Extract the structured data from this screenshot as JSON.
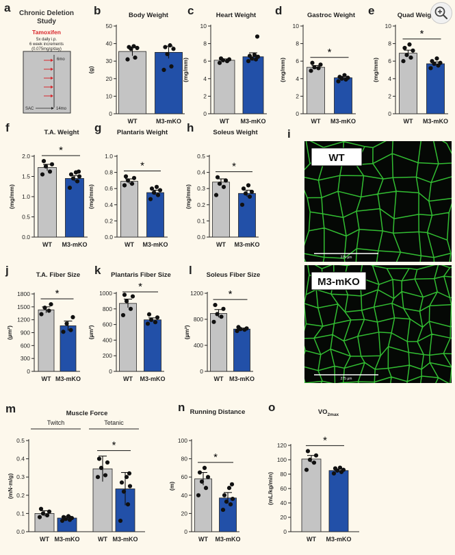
{
  "ui": {
    "zoom_icon": "zoom-in-icon"
  },
  "colors": {
    "wt": "#c4c4c4",
    "ko": "#2250a8",
    "sig": "#000000",
    "background": "#fdf8ec",
    "fiber": "#37d337"
  },
  "schematic": {
    "letter": "a",
    "title_lines": [
      "Chronic Deletion",
      "Study"
    ],
    "drug": "Tamoxifen",
    "detail_lines": [
      "5x daily i.p.",
      "6 week increments",
      "(0.075mg/g/day)"
    ],
    "start_label": "6mo",
    "end_label": "SAC",
    "end_age": "14mo",
    "doses": 5
  },
  "micrographs": [
    {
      "letter": "i",
      "label": "WT",
      "scale_text": "275 µm"
    },
    {
      "label": "M3-mKO",
      "scale_text": "275 µm"
    }
  ],
  "chart_data": [
    {
      "id": "b",
      "letter": "b",
      "type": "bar",
      "title": "Body Weight",
      "ylabel": "(g)",
      "ylim": [
        0,
        50
      ],
      "yticks": [
        0,
        10,
        20,
        30,
        40,
        50
      ],
      "categories": [
        "WT",
        "M3-mKO"
      ],
      "values": [
        35.5,
        35.0
      ],
      "errors": [
        2.5,
        3.5
      ],
      "points": [
        [
          31,
          32,
          37,
          37.5,
          38,
          38.5
        ],
        [
          25,
          27,
          34,
          37,
          38,
          39
        ]
      ],
      "significance": null
    },
    {
      "id": "c",
      "letter": "c",
      "type": "bar",
      "title": "Heart Weight",
      "ylabel": "(mg/mm)",
      "ylim": [
        0,
        10
      ],
      "yticks": [
        0,
        2,
        4,
        6,
        8,
        10
      ],
      "categories": [
        "WT",
        "M3-mKO"
      ],
      "values": [
        6.1,
        6.5
      ],
      "errors": [
        0.15,
        0.45
      ],
      "points": [
        [
          5.8,
          6.0,
          6.1,
          6.2,
          6.3
        ],
        [
          6.0,
          6.2,
          6.3,
          6.5,
          6.6,
          6.7,
          8.8
        ]
      ],
      "significance": null
    },
    {
      "id": "d",
      "letter": "d",
      "type": "bar",
      "title": "Gastroc Weight",
      "ylabel": "(mg/mm)",
      "ylim": [
        0,
        10
      ],
      "yticks": [
        0,
        2,
        4,
        6,
        8,
        10
      ],
      "categories": [
        "WT",
        "M3-mKO"
      ],
      "values": [
        5.3,
        4.1
      ],
      "errors": [
        0.2,
        0.15
      ],
      "points": [
        [
          4.9,
          5.2,
          5.3,
          5.6,
          5.8
        ],
        [
          3.7,
          3.9,
          4.0,
          4.1,
          4.2,
          4.4
        ]
      ],
      "significance": "*"
    },
    {
      "id": "e",
      "letter": "e",
      "type": "bar",
      "title": "Quad Weight",
      "ylabel": "(mg/mm)",
      "ylim": [
        0,
        10
      ],
      "yticks": [
        0,
        2,
        4,
        6,
        8,
        10
      ],
      "categories": [
        "WT",
        "M3-mKO"
      ],
      "values": [
        6.9,
        5.7
      ],
      "errors": [
        0.35,
        0.2
      ],
      "points": [
        [
          6.0,
          6.4,
          6.7,
          7.2,
          7.5,
          7.9
        ],
        [
          5.2,
          5.5,
          5.7,
          5.8,
          6.0,
          6.3
        ]
      ],
      "significance": "*"
    },
    {
      "id": "f",
      "letter": "f",
      "type": "bar",
      "title": "T.A. Weight",
      "ylabel": "(mg/mm)",
      "ylim": [
        0,
        2.0
      ],
      "yticks": [
        0.0,
        0.5,
        1.0,
        1.5,
        2.0
      ],
      "categories": [
        "WT",
        "M3-mKO"
      ],
      "values": [
        1.72,
        1.45
      ],
      "errors": [
        0.08,
        0.07
      ],
      "points": [
        [
          1.55,
          1.62,
          1.75,
          1.8,
          1.88
        ],
        [
          1.22,
          1.38,
          1.45,
          1.5,
          1.55,
          1.6,
          1.62
        ]
      ],
      "significance": "*"
    },
    {
      "id": "g",
      "letter": "g",
      "type": "bar",
      "title": "Plantaris Weight",
      "ylabel": "(mg/mm)",
      "ylim": [
        0,
        1.0
      ],
      "yticks": [
        0.0,
        0.2,
        0.4,
        0.6,
        0.8,
        1.0
      ],
      "categories": [
        "WT",
        "M3-mKO"
      ],
      "values": [
        0.69,
        0.55
      ],
      "errors": [
        0.03,
        0.03
      ],
      "points": [
        [
          0.64,
          0.66,
          0.7,
          0.73,
          0.75
        ],
        [
          0.47,
          0.52,
          0.55,
          0.58,
          0.6,
          0.62
        ]
      ],
      "significance": "*"
    },
    {
      "id": "h",
      "letter": "h",
      "type": "bar",
      "title": "Soleus Weight",
      "ylabel": "(mg/mm)",
      "ylim": [
        0,
        0.5
      ],
      "yticks": [
        0.0,
        0.1,
        0.2,
        0.3,
        0.4,
        0.5
      ],
      "categories": [
        "WT",
        "M3-mKO"
      ],
      "values": [
        0.34,
        0.27
      ],
      "errors": [
        0.02,
        0.02
      ],
      "points": [
        [
          0.26,
          0.31,
          0.33,
          0.35,
          0.37
        ],
        [
          0.2,
          0.25,
          0.27,
          0.28,
          0.3,
          0.32
        ]
      ],
      "significance": "*"
    },
    {
      "id": "j",
      "letter": "j",
      "type": "bar",
      "title": "T.A. Fiber Size",
      "ylabel": "(µm²)",
      "ylim": [
        0,
        1800
      ],
      "yticks": [
        0,
        300,
        600,
        900,
        1200,
        1500,
        1800
      ],
      "categories": [
        "WT",
        "M3-mKO"
      ],
      "values": [
        1430,
        1060
      ],
      "errors": [
        70,
        110
      ],
      "points": [
        [
          1330,
          1410,
          1480,
          1560
        ],
        [
          920,
          960,
          1110,
          1260
        ]
      ],
      "significance": "*"
    },
    {
      "id": "k",
      "letter": "k",
      "type": "bar",
      "title": "Plantaris Fiber Size",
      "ylabel": "(µm²)",
      "ylim": [
        0,
        1000
      ],
      "yticks": [
        0,
        200,
        400,
        600,
        800,
        1000
      ],
      "categories": [
        "WT",
        "M3-mKO"
      ],
      "values": [
        870,
        660
      ],
      "errors": [
        55,
        25
      ],
      "points": [
        [
          720,
          800,
          900,
          960,
          980
        ],
        [
          610,
          630,
          660,
          690,
          730
        ]
      ],
      "significance": "*"
    },
    {
      "id": "l",
      "letter": "l",
      "type": "bar",
      "title": "Soleus Fiber Size",
      "ylabel": "(µm²)",
      "ylim": [
        0,
        1200
      ],
      "yticks": [
        0,
        400,
        800,
        1200
      ],
      "categories": [
        "WT",
        "M3-mKO"
      ],
      "values": [
        890,
        650
      ],
      "errors": [
        60,
        15
      ],
      "points": [
        [
          760,
          840,
          880,
          960,
          1020
        ],
        [
          620,
          640,
          650,
          660,
          680
        ]
      ],
      "significance": "*"
    },
    {
      "id": "m",
      "letter": "m",
      "type": "bar",
      "title": "Muscle Force",
      "ylabel": "(mN·m/g)",
      "ylim": [
        0,
        0.5
      ],
      "yticks": [
        0.0,
        0.1,
        0.2,
        0.3,
        0.4,
        0.5
      ],
      "groups": [
        "Twitch",
        "Tetanic"
      ],
      "categories": [
        "WT",
        "M3-mKO",
        "WT",
        "M3-mKO"
      ],
      "values": [
        0.1,
        0.075,
        0.345,
        0.235
      ],
      "errors": [
        0.015,
        0.01,
        0.07,
        0.09
      ],
      "points": [
        [
          0.08,
          0.09,
          0.1,
          0.11,
          0.125
        ],
        [
          0.06,
          0.065,
          0.07,
          0.075,
          0.08,
          0.085
        ],
        [
          0.3,
          0.31,
          0.35,
          0.38,
          0.4
        ],
        [
          0.06,
          0.15,
          0.22,
          0.25,
          0.27,
          0.3,
          0.32
        ]
      ],
      "significance": "*",
      "significance_between": [
        2,
        3
      ]
    },
    {
      "id": "n",
      "letter": "n",
      "type": "bar",
      "title": "Running Distance",
      "ylabel": "(m)",
      "ylim": [
        0,
        100
      ],
      "yticks": [
        0,
        20,
        40,
        60,
        80,
        100
      ],
      "categories": [
        "WT",
        "M3-mKO"
      ],
      "values": [
        58,
        37
      ],
      "errors": [
        7,
        6
      ],
      "points": [
        [
          40,
          48,
          55,
          60,
          65,
          70
        ],
        [
          24,
          30,
          33,
          36,
          40,
          48,
          52
        ]
      ],
      "significance": "*"
    },
    {
      "id": "o",
      "letter": "o",
      "type": "bar",
      "title": "VO",
      "title_sub": "2max",
      "ylabel": "(mL/kg/min)",
      "ylim": [
        0,
        120
      ],
      "yticks": [
        0,
        20,
        40,
        60,
        80,
        100,
        120
      ],
      "categories": [
        "WT",
        "M3-mKO"
      ],
      "values": [
        101,
        85
      ],
      "errors": [
        5,
        2
      ],
      "points": [
        [
          86,
          96,
          100,
          106,
          112
        ],
        [
          81,
          83,
          85,
          86,
          88,
          89
        ]
      ],
      "significance": "*"
    }
  ]
}
